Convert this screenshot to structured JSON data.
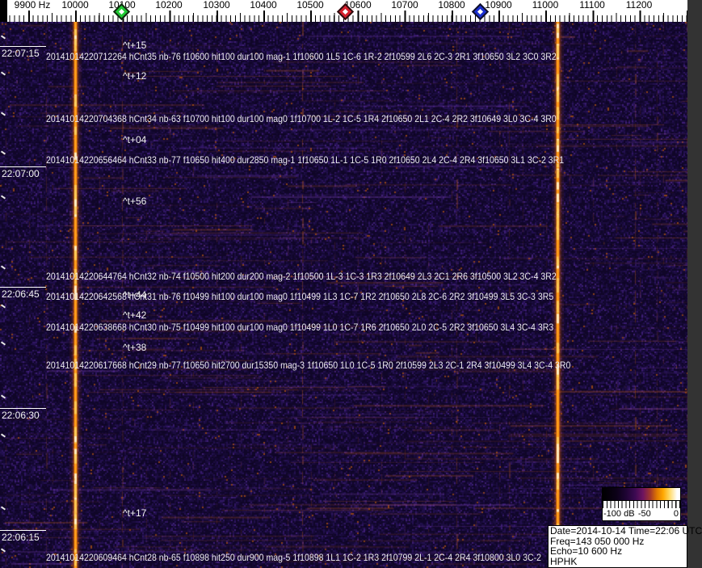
{
  "frequency_axis": {
    "labels": [
      "9900 Hz",
      "10000",
      "10100",
      "10200",
      "10300",
      "10400",
      "10500",
      "10600",
      "10700",
      "10800",
      "10900",
      "11000",
      "11100",
      "11200"
    ]
  },
  "markers": [
    {
      "name": "green-marker",
      "color": "#1ec832"
    },
    {
      "name": "red-marker",
      "color": "#d41f2c"
    },
    {
      "name": "blue-marker",
      "color": "#1a2fd0"
    }
  ],
  "time_axis": {
    "labels": [
      "22:07:15",
      "22:07:00",
      "22:06:45",
      "22:06:30",
      "22:06:15"
    ]
  },
  "time_offsets": [
    "^t+15",
    "^t+12",
    "^t+04",
    "^t+56",
    "^t+44",
    "^t+42",
    "^t+38",
    "^t+17"
  ],
  "detections": [
    "20141014220712264 hCnt35 nb-76 f10600 hit100 dur100 mag-1 1f10600 1L5 1C-6 1R-2 2f10599 2L6 2C-3 2R1 3f10650 3L2 3C0 3R2",
    "20141014220704368 hCnt34 nb-63 f10700 hit100 dur100 mag0 1f10700 1L-2 1C-5 1R4 2f10650 2L1 2C-4 2R2 3f10649 3L0 3C-4 3R0",
    "20141014220656464 hCnt33 nb-77 f10650 hit400 dur2850 mag-1 1f10650 1L-1 1C-5 1R0 2f10650 2L4 2C-4 2R4 3f10650 3L1 3C-2 3R1",
    "20141014220644764 hCnt32 nb-74 f10500 hit200 dur200 mag-2 1f10500 1L-3 1C-3 1R3 2f10649 2L3 2C1 2R6 3f10500 3L2 3C-4 3R2",
    "20141014220642568 hCnt31 nb-76 f10499 hit100 dur100 mag0 1f10499 1L3 1C-7 1R2 2f10650 2L8 2C-6 2R2 3f10499 3L5 3C-3 3R5",
    "20141014220638668 hCnt30 nb-75 f10499 hit100 dur100 mag0 1f10499 1L0 1C-7 1R6 2f10650 2L0 2C-5 2R2 3f10650 3L4 3C-4 3R3",
    "20141014220617668 hCnt29 nb-77 f10650 hit2700 dur15350 mag-3 1f10650 1L0 1C-5 1R0 2f10599 2L3 2C-1 2R4 3f10499 3L4 3C-4 3R0",
    "20141014220609464 hCnt28 nb-65 f10898 hit250 dur900 mag-5 1f10898 1L1 1C-2 1R3 2f10799 2L-1 2C-4 2R4 3f10800 3L0 3C-2"
  ],
  "legend": {
    "min_label": "-100 dB",
    "mid_label": "-50",
    "max_label": "0"
  },
  "info_box": {
    "date_line": "Date=2014-10-14 Time=22:06 UTC",
    "freq_line": "Freq=143 050 000 Hz",
    "echo_line": "Echo=10 600 Hz",
    "station_line": "HPHK"
  },
  "colors": {
    "carrier_line": "#ff9010",
    "spectrogram_background": "#160833"
  }
}
